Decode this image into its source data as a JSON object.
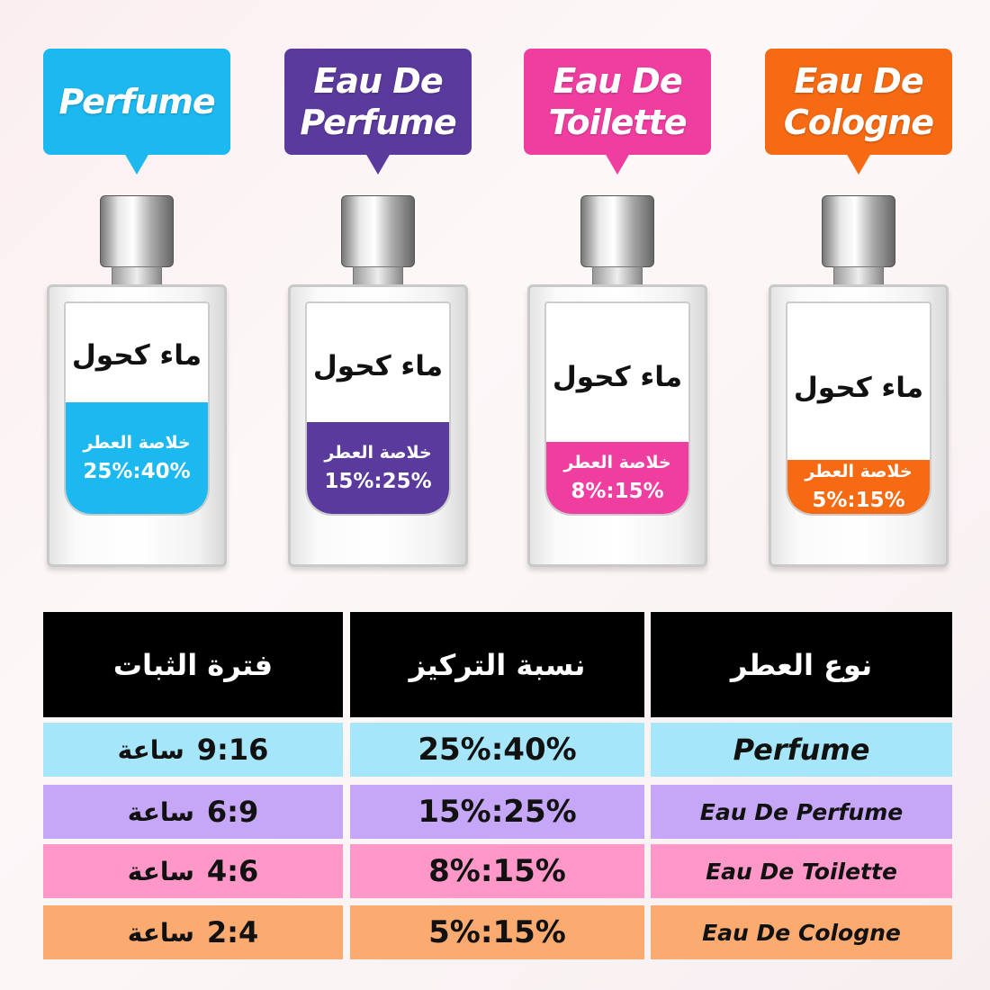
{
  "bottles": [
    {
      "type": "Perfume",
      "type_lines": [
        "Perfume"
      ],
      "color": "#1cb8f0",
      "water_label": "ماء كحول",
      "essence_label": "خلاصة العطر",
      "concentration": "25%:40%"
    },
    {
      "type": "Eau De Perfume",
      "type_lines": [
        "Eau De",
        "Perfume"
      ],
      "color": "#5b3a9e",
      "water_label": "ماء كحول",
      "essence_label": "خلاصة العطر",
      "concentration": "15%:25%"
    },
    {
      "type": "Eau De Toilette",
      "type_lines": [
        "Eau De",
        "Toilette"
      ],
      "color": "#f03ea0",
      "water_label": "ماء كحول",
      "essence_label": "خلاصة العطر",
      "concentration": "8%:15%"
    },
    {
      "type": "Eau De Cologne",
      "type_lines": [
        "Eau De",
        "Cologne"
      ],
      "color": "#f56a13",
      "water_label": "ماء كحول",
      "essence_label": "خلاصة العطر",
      "concentration": "5%:15%"
    }
  ],
  "table": {
    "headers": {
      "duration": "فترة الثبات",
      "concentration": "نسبة التركيز",
      "type": "نوع العطر"
    },
    "rows": [
      {
        "type": "Perfume",
        "concentration": "25%:40%",
        "duration": "9:16",
        "unit": "ساعة",
        "color": "#a6e6fa"
      },
      {
        "type": "Eau De Perfume",
        "concentration": "15%:25%",
        "duration": "6:9",
        "unit": "ساعة",
        "color": "#c5a6f7"
      },
      {
        "type": "Eau De Toilette",
        "concentration": "8%:15%",
        "duration": "4:6",
        "unit": "ساعة",
        "color": "#ff98c9"
      },
      {
        "type": "Eau De Cologne",
        "concentration": "5%:15%",
        "duration": "2:4",
        "unit": "ساعة",
        "color": "#fbaa70"
      }
    ]
  }
}
